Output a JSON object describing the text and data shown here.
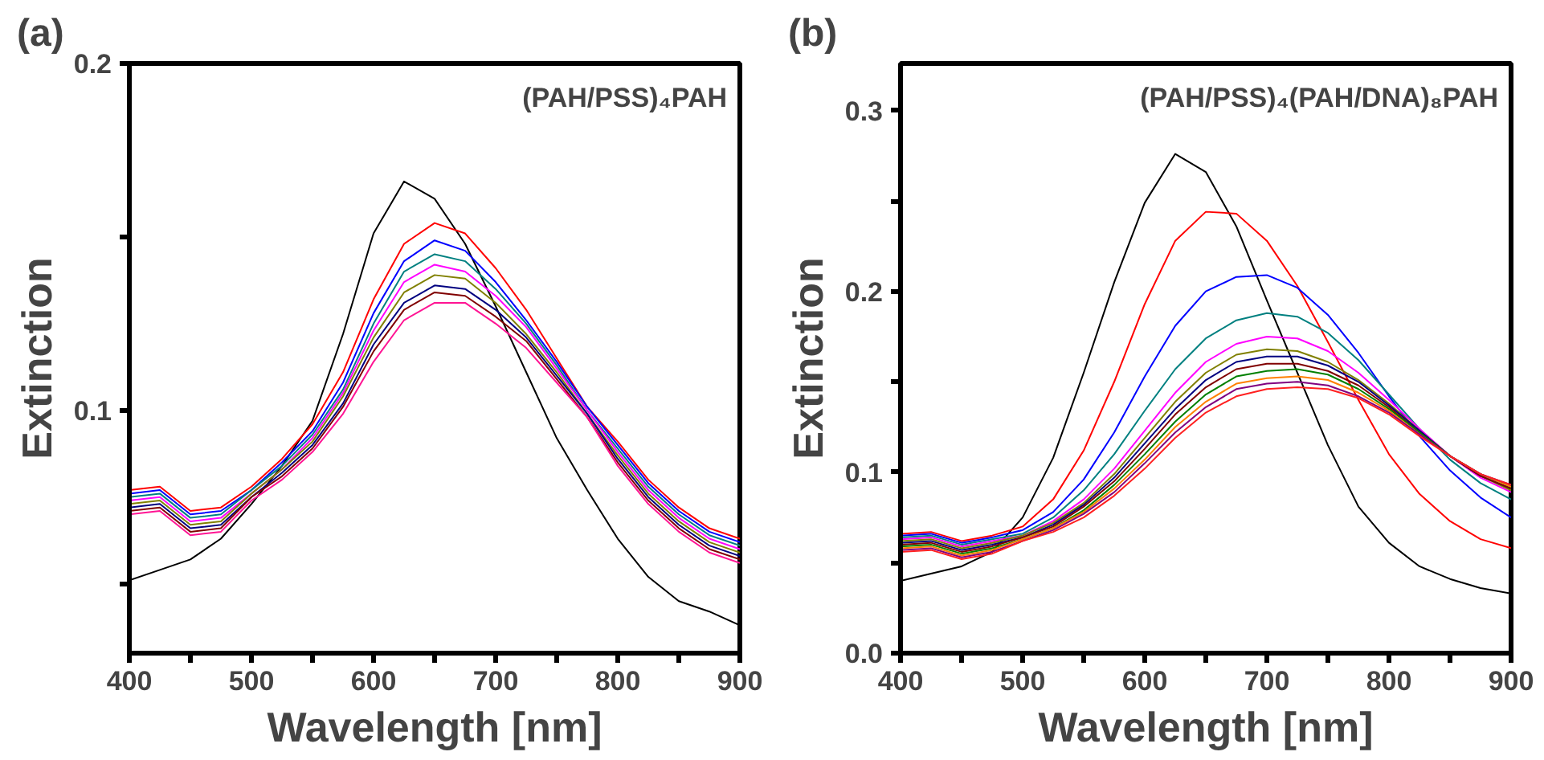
{
  "chart_data": [
    {
      "type": "line",
      "title": "(a)",
      "xlabel": "Wavelength [nm]",
      "ylabel": "Extinction",
      "annotations": [
        "(PAH/PSS)₄PAH"
      ],
      "x": [
        400,
        425,
        450,
        475,
        500,
        525,
        550,
        575,
        600,
        625,
        650,
        675,
        700,
        725,
        750,
        775,
        800,
        825,
        850,
        875,
        900
      ],
      "xlim": [
        400,
        900
      ],
      "xticks": [
        400,
        {
          "value": 450,
          "label": null
        },
        500,
        {
          "value": 550,
          "label": null
        },
        600,
        {
          "value": 650,
          "label": null
        },
        700,
        {
          "value": 750,
          "label": null
        },
        800,
        {
          "value": 850,
          "label": null
        },
        900
      ],
      "ylim": [
        0.03,
        0.2
      ],
      "yticks": [
        {
          "value": 0.05,
          "label": null
        },
        0.1,
        {
          "value": 0.15,
          "label": null
        },
        0.2
      ],
      "grid": false,
      "marker": "none",
      "line_style": "solid",
      "series": [
        {
          "color": "#000000",
          "values": [
            0.051,
            0.054,
            0.057,
            0.063,
            0.073,
            0.084,
            0.097,
            0.122,
            0.151,
            0.166,
            0.161,
            0.148,
            0.13,
            0.111,
            0.092,
            0.077,
            0.063,
            0.052,
            0.045,
            0.042,
            0.038
          ]
        },
        {
          "color": "#ff0000",
          "values": [
            0.077,
            0.078,
            0.071,
            0.072,
            0.078,
            0.086,
            0.096,
            0.111,
            0.132,
            0.148,
            0.154,
            0.151,
            0.141,
            0.129,
            0.115,
            0.101,
            0.091,
            0.08,
            0.072,
            0.066,
            0.063
          ]
        },
        {
          "color": "#0000ff",
          "values": [
            0.076,
            0.077,
            0.07,
            0.071,
            0.077,
            0.085,
            0.094,
            0.108,
            0.128,
            0.143,
            0.149,
            0.146,
            0.137,
            0.126,
            0.114,
            0.101,
            0.09,
            0.079,
            0.071,
            0.065,
            0.062
          ]
        },
        {
          "color": "#008080",
          "values": [
            0.075,
            0.076,
            0.069,
            0.07,
            0.077,
            0.084,
            0.093,
            0.106,
            0.125,
            0.14,
            0.145,
            0.143,
            0.135,
            0.125,
            0.113,
            0.1,
            0.089,
            0.078,
            0.07,
            0.064,
            0.061
          ]
        },
        {
          "color": "#ff00ff",
          "values": [
            0.074,
            0.075,
            0.068,
            0.069,
            0.076,
            0.083,
            0.092,
            0.105,
            0.123,
            0.137,
            0.142,
            0.14,
            0.133,
            0.124,
            0.112,
            0.1,
            0.088,
            0.077,
            0.069,
            0.063,
            0.06
          ]
        },
        {
          "color": "#808000",
          "values": [
            0.073,
            0.074,
            0.067,
            0.068,
            0.076,
            0.083,
            0.091,
            0.104,
            0.121,
            0.134,
            0.139,
            0.138,
            0.131,
            0.122,
            0.111,
            0.099,
            0.087,
            0.076,
            0.068,
            0.062,
            0.059
          ]
        },
        {
          "color": "#000080",
          "values": [
            0.072,
            0.073,
            0.066,
            0.067,
            0.075,
            0.082,
            0.09,
            0.102,
            0.119,
            0.131,
            0.136,
            0.135,
            0.129,
            0.121,
            0.11,
            0.099,
            0.086,
            0.075,
            0.067,
            0.061,
            0.058
          ]
        },
        {
          "color": "#800000",
          "values": [
            0.071,
            0.072,
            0.065,
            0.066,
            0.075,
            0.081,
            0.089,
            0.101,
            0.117,
            0.129,
            0.134,
            0.133,
            0.127,
            0.12,
            0.109,
            0.098,
            0.085,
            0.074,
            0.066,
            0.06,
            0.057
          ]
        },
        {
          "color": "#ff1493",
          "values": [
            0.07,
            0.071,
            0.064,
            0.065,
            0.074,
            0.08,
            0.088,
            0.099,
            0.114,
            0.126,
            0.131,
            0.131,
            0.125,
            0.118,
            0.108,
            0.098,
            0.084,
            0.073,
            0.065,
            0.059,
            0.056
          ]
        }
      ]
    },
    {
      "type": "line",
      "title": "(b)",
      "xlabel": "Wavelength [nm]",
      "ylabel": "Extinction",
      "annotations": [
        "(PAH/PSS)₄(PAH/DNA)₈PAH"
      ],
      "x": [
        400,
        425,
        450,
        475,
        500,
        525,
        550,
        575,
        600,
        625,
        650,
        675,
        700,
        725,
        750,
        775,
        800,
        825,
        850,
        875,
        900
      ],
      "xlim": [
        400,
        900
      ],
      "xticks": [
        400,
        {
          "value": 450,
          "label": null
        },
        500,
        {
          "value": 550,
          "label": null
        },
        600,
        {
          "value": 650,
          "label": null
        },
        700,
        {
          "value": 750,
          "label": null
        },
        800,
        {
          "value": 850,
          "label": null
        },
        900
      ],
      "ylim": [
        0,
        0.326
      ],
      "yticks": [
        {
          "value": 0,
          "label": "0.0"
        },
        {
          "value": 0.05,
          "label": null
        },
        0.1,
        {
          "value": 0.15,
          "label": null
        },
        0.2,
        {
          "value": 0.25,
          "label": null
        },
        0.3
      ],
      "grid": false,
      "marker": "none",
      "line_style": "solid",
      "series": [
        {
          "color": "#000000",
          "values": [
            0.04,
            0.044,
            0.048,
            0.056,
            0.075,
            0.108,
            0.155,
            0.205,
            0.249,
            0.276,
            0.266,
            0.236,
            0.195,
            0.155,
            0.115,
            0.081,
            0.061,
            0.048,
            0.041,
            0.036,
            0.033
          ]
        },
        {
          "color": "#ff0000",
          "values": [
            0.066,
            0.067,
            0.062,
            0.065,
            0.07,
            0.085,
            0.112,
            0.15,
            0.193,
            0.228,
            0.244,
            0.243,
            0.228,
            0.203,
            0.172,
            0.14,
            0.11,
            0.088,
            0.073,
            0.063,
            0.058
          ]
        },
        {
          "color": "#0000ff",
          "values": [
            0.065,
            0.066,
            0.061,
            0.064,
            0.068,
            0.078,
            0.096,
            0.122,
            0.153,
            0.181,
            0.2,
            0.208,
            0.209,
            0.202,
            0.187,
            0.166,
            0.142,
            0.12,
            0.101,
            0.086,
            0.075
          ]
        },
        {
          "color": "#008080",
          "values": [
            0.064,
            0.065,
            0.06,
            0.063,
            0.066,
            0.075,
            0.09,
            0.11,
            0.134,
            0.157,
            0.174,
            0.184,
            0.188,
            0.186,
            0.177,
            0.162,
            0.143,
            0.124,
            0.107,
            0.094,
            0.085
          ]
        },
        {
          "color": "#ff00ff",
          "values": [
            0.063,
            0.064,
            0.059,
            0.062,
            0.065,
            0.073,
            0.085,
            0.102,
            0.123,
            0.144,
            0.161,
            0.171,
            0.175,
            0.174,
            0.167,
            0.155,
            0.14,
            0.124,
            0.109,
            0.097,
            0.089
          ]
        },
        {
          "color": "#808000",
          "values": [
            0.062,
            0.063,
            0.058,
            0.061,
            0.065,
            0.072,
            0.083,
            0.099,
            0.119,
            0.139,
            0.155,
            0.165,
            0.168,
            0.167,
            0.161,
            0.151,
            0.138,
            0.123,
            0.109,
            0.098,
            0.09
          ]
        },
        {
          "color": "#000080",
          "values": [
            0.061,
            0.062,
            0.057,
            0.06,
            0.064,
            0.071,
            0.082,
            0.097,
            0.116,
            0.135,
            0.151,
            0.161,
            0.164,
            0.164,
            0.159,
            0.15,
            0.137,
            0.123,
            0.109,
            0.098,
            0.091
          ]
        },
        {
          "color": "#800000",
          "values": [
            0.06,
            0.061,
            0.056,
            0.059,
            0.064,
            0.07,
            0.081,
            0.095,
            0.113,
            0.132,
            0.147,
            0.157,
            0.16,
            0.16,
            0.156,
            0.148,
            0.136,
            0.122,
            0.109,
            0.098,
            0.091
          ]
        },
        {
          "color": "#008000",
          "values": [
            0.059,
            0.06,
            0.055,
            0.058,
            0.063,
            0.069,
            0.079,
            0.093,
            0.11,
            0.128,
            0.143,
            0.153,
            0.156,
            0.157,
            0.154,
            0.146,
            0.135,
            0.122,
            0.109,
            0.099,
            0.092
          ]
        },
        {
          "color": "#ff8000",
          "values": [
            0.058,
            0.059,
            0.054,
            0.057,
            0.063,
            0.069,
            0.078,
            0.091,
            0.107,
            0.125,
            0.139,
            0.149,
            0.152,
            0.153,
            0.151,
            0.144,
            0.134,
            0.121,
            0.109,
            0.099,
            0.092
          ]
        },
        {
          "color": "#800080",
          "values": [
            0.057,
            0.058,
            0.053,
            0.056,
            0.062,
            0.068,
            0.077,
            0.089,
            0.105,
            0.122,
            0.136,
            0.146,
            0.149,
            0.15,
            0.148,
            0.142,
            0.133,
            0.121,
            0.109,
            0.099,
            0.093
          ]
        },
        {
          "color": "#ff2020",
          "values": [
            0.056,
            0.057,
            0.052,
            0.055,
            0.062,
            0.067,
            0.075,
            0.087,
            0.102,
            0.119,
            0.133,
            0.142,
            0.146,
            0.147,
            0.146,
            0.141,
            0.132,
            0.12,
            0.109,
            0.099,
            0.093
          ]
        }
      ]
    }
  ]
}
